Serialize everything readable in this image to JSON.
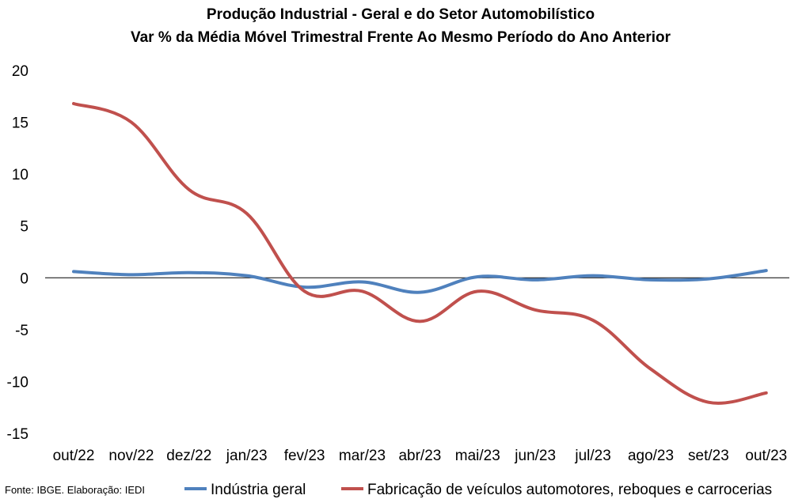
{
  "chart_data": {
    "type": "line",
    "title": "Produção Industrial - Geral e do Setor Automobilístico",
    "subtitle": "Var % da Média Móvel Trimestral Frente Ao Mesmo Período do Ano Anterior",
    "categories": [
      "out/22",
      "nov/22",
      "dez/22",
      "jan/23",
      "fev/23",
      "mar/23",
      "abr/23",
      "mai/23",
      "jun/23",
      "jul/23",
      "ago/23",
      "set/23",
      "out/23"
    ],
    "yticks": [
      "20",
      "15",
      "10",
      "5",
      "0",
      "-5",
      "-10",
      "-15"
    ],
    "ylim": [
      -15,
      20
    ],
    "grid": false,
    "legend_position": "bottom",
    "series": [
      {
        "name": "Indústria geral",
        "color": "#4f81bd",
        "values": [
          0.6,
          0.3,
          0.5,
          0.2,
          -0.9,
          -0.4,
          -1.4,
          0.1,
          -0.2,
          0.2,
          -0.2,
          -0.1,
          0.7
        ]
      },
      {
        "name": "Fabricação de veículos automotores, reboques e carrocerias",
        "color": "#c0504d",
        "values": [
          16.8,
          15.0,
          8.5,
          6.2,
          -1.3,
          -1.3,
          -4.2,
          -1.3,
          -3.1,
          -4.1,
          -8.8,
          -12.0,
          -11.1
        ]
      }
    ],
    "source": "Fonte: IBGE. Elaboração: IEDI"
  }
}
